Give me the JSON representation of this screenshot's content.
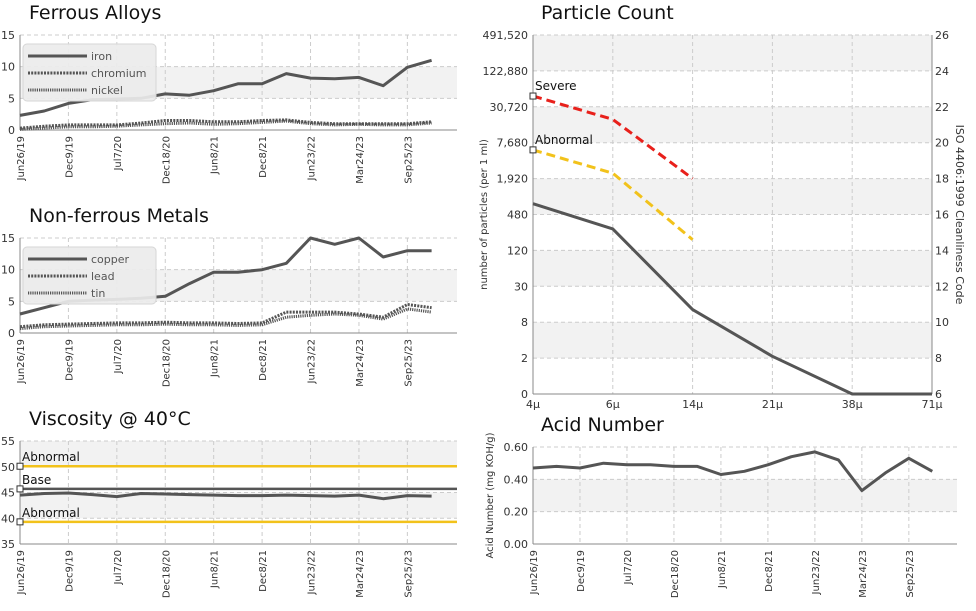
{
  "colors": {
    "series": "#555555",
    "severe": "#e8201b",
    "abnormal": "#f2c21b",
    "grid": "#cccccc",
    "band": "#f2f2f2"
  },
  "chart_data": [
    {
      "id": "ferrous",
      "type": "line",
      "title": "Ferrous Alloys",
      "x": [
        "Jun26/19",
        "",
        "Dec9/19",
        "",
        "Jul7/20",
        "",
        "Dec18/20",
        "",
        "Jun8/21",
        "",
        "Dec8/21",
        "",
        "Jun23/22",
        "",
        "Mar24/23",
        "",
        "Sep25/23",
        ""
      ],
      "xticks": [
        "Jun26/19",
        "Dec9/19",
        "Jul7/20",
        "Dec18/20",
        "Jun8/21",
        "Dec8/21",
        "Jun23/22",
        "Mar24/23",
        "Sep25/23"
      ],
      "ylim": [
        0,
        15
      ],
      "yticks": [
        0,
        5,
        10,
        15
      ],
      "legend_position": "top-left",
      "series": [
        {
          "name": "iron",
          "style": "solid",
          "values": [
            2.3,
            3.0,
            4.2,
            4.8,
            4.9,
            5.0,
            5.7,
            5.5,
            6.2,
            7.3,
            7.3,
            8.9,
            8.2,
            8.1,
            8.3,
            7.0,
            9.9,
            11.0
          ]
        },
        {
          "name": "chromium",
          "style": "dashed",
          "values": [
            0.3,
            0.6,
            0.8,
            0.8,
            0.8,
            1.1,
            1.5,
            1.5,
            1.3,
            1.3,
            1.5,
            1.6,
            1.2,
            1.0,
            1.0,
            1.0,
            1.0,
            1.3
          ]
        },
        {
          "name": "nickel",
          "style": "dotted",
          "values": [
            0.1,
            0.3,
            0.5,
            0.5,
            0.6,
            0.8,
            1.0,
            1.1,
            0.9,
            1.0,
            1.2,
            1.4,
            1.0,
            0.8,
            0.9,
            0.8,
            0.8,
            1.1
          ]
        }
      ]
    },
    {
      "id": "nonferrous",
      "type": "line",
      "title": "Non-ferrous Metals",
      "x": [
        "Jun26/19",
        "",
        "Dec9/19",
        "",
        "Jul7/20",
        "",
        "Dec18/20",
        "",
        "Jun8/21",
        "",
        "Dec8/21",
        "",
        "Jun23/22",
        "",
        "Mar24/23",
        "",
        "Sep25/23",
        ""
      ],
      "xticks": [
        "Jun26/19",
        "Dec9/19",
        "Jul7/20",
        "Dec18/20",
        "Jun8/21",
        "Dec8/21",
        "Jun23/22",
        "Mar24/23",
        "Sep25/23"
      ],
      "ylim": [
        0,
        15
      ],
      "yticks": [
        0,
        5,
        10,
        15
      ],
      "legend_position": "top-left",
      "series": [
        {
          "name": "copper",
          "style": "solid",
          "values": [
            3.0,
            4.0,
            5.0,
            5.2,
            5.3,
            5.5,
            5.8,
            7.8,
            9.6,
            9.6,
            10.0,
            11.0,
            15.0,
            14.0,
            15.0,
            12.0,
            13.0,
            13.0
          ]
        },
        {
          "name": "lead",
          "style": "dashed",
          "values": [
            1.0,
            1.3,
            1.4,
            1.5,
            1.6,
            1.6,
            1.7,
            1.6,
            1.6,
            1.5,
            1.6,
            3.3,
            3.3,
            3.3,
            3.0,
            2.5,
            4.5,
            4.0
          ]
        },
        {
          "name": "tin",
          "style": "dotted",
          "values": [
            0.7,
            1.0,
            1.1,
            1.2,
            1.3,
            1.3,
            1.4,
            1.3,
            1.3,
            1.2,
            1.3,
            2.5,
            2.8,
            3.0,
            2.8,
            2.2,
            3.8,
            3.3
          ]
        }
      ]
    },
    {
      "id": "viscosity",
      "type": "line",
      "title": "Viscosity @ 40°C",
      "x": [
        "Jun26/19",
        "",
        "Dec9/19",
        "",
        "Jul7/20",
        "",
        "Dec18/20",
        "",
        "Jun8/21",
        "",
        "Dec8/21",
        "",
        "Jun23/22",
        "",
        "Mar24/23",
        "",
        "Sep25/23",
        ""
      ],
      "xticks": [
        "Jun26/19",
        "Dec9/19",
        "Jul7/20",
        "Dec18/20",
        "Jun8/21",
        "Dec8/21",
        "Jun23/22",
        "Mar24/23",
        "Sep25/23"
      ],
      "ylim": [
        35,
        55
      ],
      "yticks": [
        35,
        40,
        45,
        50,
        55
      ],
      "series": [
        {
          "name": "viscosity",
          "style": "solid",
          "values": [
            44.5,
            44.8,
            44.9,
            44.6,
            44.2,
            44.8,
            44.7,
            44.6,
            44.5,
            44.4,
            44.4,
            44.5,
            44.4,
            44.3,
            44.5,
            43.8,
            44.4,
            44.3
          ]
        }
      ],
      "reference_lines": [
        {
          "label": "Abnormal",
          "value": 50.1,
          "color": "abnormal"
        },
        {
          "label": "Base",
          "value": 45.7,
          "color": "series"
        },
        {
          "label": "Abnormal",
          "value": 39.3,
          "color": "abnormal"
        }
      ]
    },
    {
      "id": "particle",
      "type": "line",
      "title": "Particle Count",
      "xticks": [
        "4μ",
        "6μ",
        "14μ",
        "21μ",
        "38μ",
        "71μ"
      ],
      "yticks": [
        "0",
        "2",
        "8",
        "30",
        "120",
        "480",
        "1,920",
        "7,680",
        "30,720",
        "122,880",
        "491,520"
      ],
      "y2ticks": [
        "6",
        "8",
        "10",
        "12",
        "14",
        "16",
        "18",
        "20",
        "22",
        "24",
        "26"
      ],
      "ylabel": "number of particles (per 1 ml)",
      "y2label": "ISO 4406:1999 Cleanliness Code",
      "series": [
        {
          "name": "particles",
          "color": "series",
          "style": "solid",
          "iso_values": [
            16.6,
            15.2,
            10.7,
            8.1,
            6.0,
            6.0
          ]
        },
        {
          "name": "Severe",
          "color": "severe",
          "style": "dashed",
          "iso_values": [
            22.6,
            21.3,
            18.0
          ]
        },
        {
          "name": "Abnormal",
          "color": "abnormal",
          "style": "dashed",
          "iso_values": [
            19.6,
            18.3,
            14.6
          ]
        }
      ],
      "markers": [
        {
          "label": "Severe",
          "iso": 22.6
        },
        {
          "label": "Abnormal",
          "iso": 19.6
        }
      ]
    },
    {
      "id": "acid",
      "type": "line",
      "title": "Acid Number",
      "x": [
        "Jun26/19",
        "",
        "Dec9/19",
        "",
        "Jul7/20",
        "",
        "Dec18/20",
        "",
        "Jun8/21",
        "",
        "Dec8/21",
        "",
        "Jun23/22",
        "",
        "Mar24/23",
        "",
        "Sep25/23",
        ""
      ],
      "xticks": [
        "Jun26/19",
        "Dec9/19",
        "Jul7/20",
        "Dec18/20",
        "Jun8/21",
        "Dec8/21",
        "Jun23/22",
        "Mar24/23",
        "Sep25/23"
      ],
      "ylim": [
        0,
        0.6
      ],
      "yticks": [
        "0.00",
        "0.20",
        "0.40",
        "0.60"
      ],
      "ylabel": "Acid Number (mg KOH/g)",
      "series": [
        {
          "name": "acid",
          "style": "solid",
          "values": [
            0.47,
            0.48,
            0.47,
            0.5,
            0.49,
            0.49,
            0.48,
            0.48,
            0.43,
            0.45,
            0.49,
            0.54,
            0.57,
            0.52,
            0.33,
            0.44,
            0.53,
            0.45
          ]
        }
      ]
    }
  ]
}
